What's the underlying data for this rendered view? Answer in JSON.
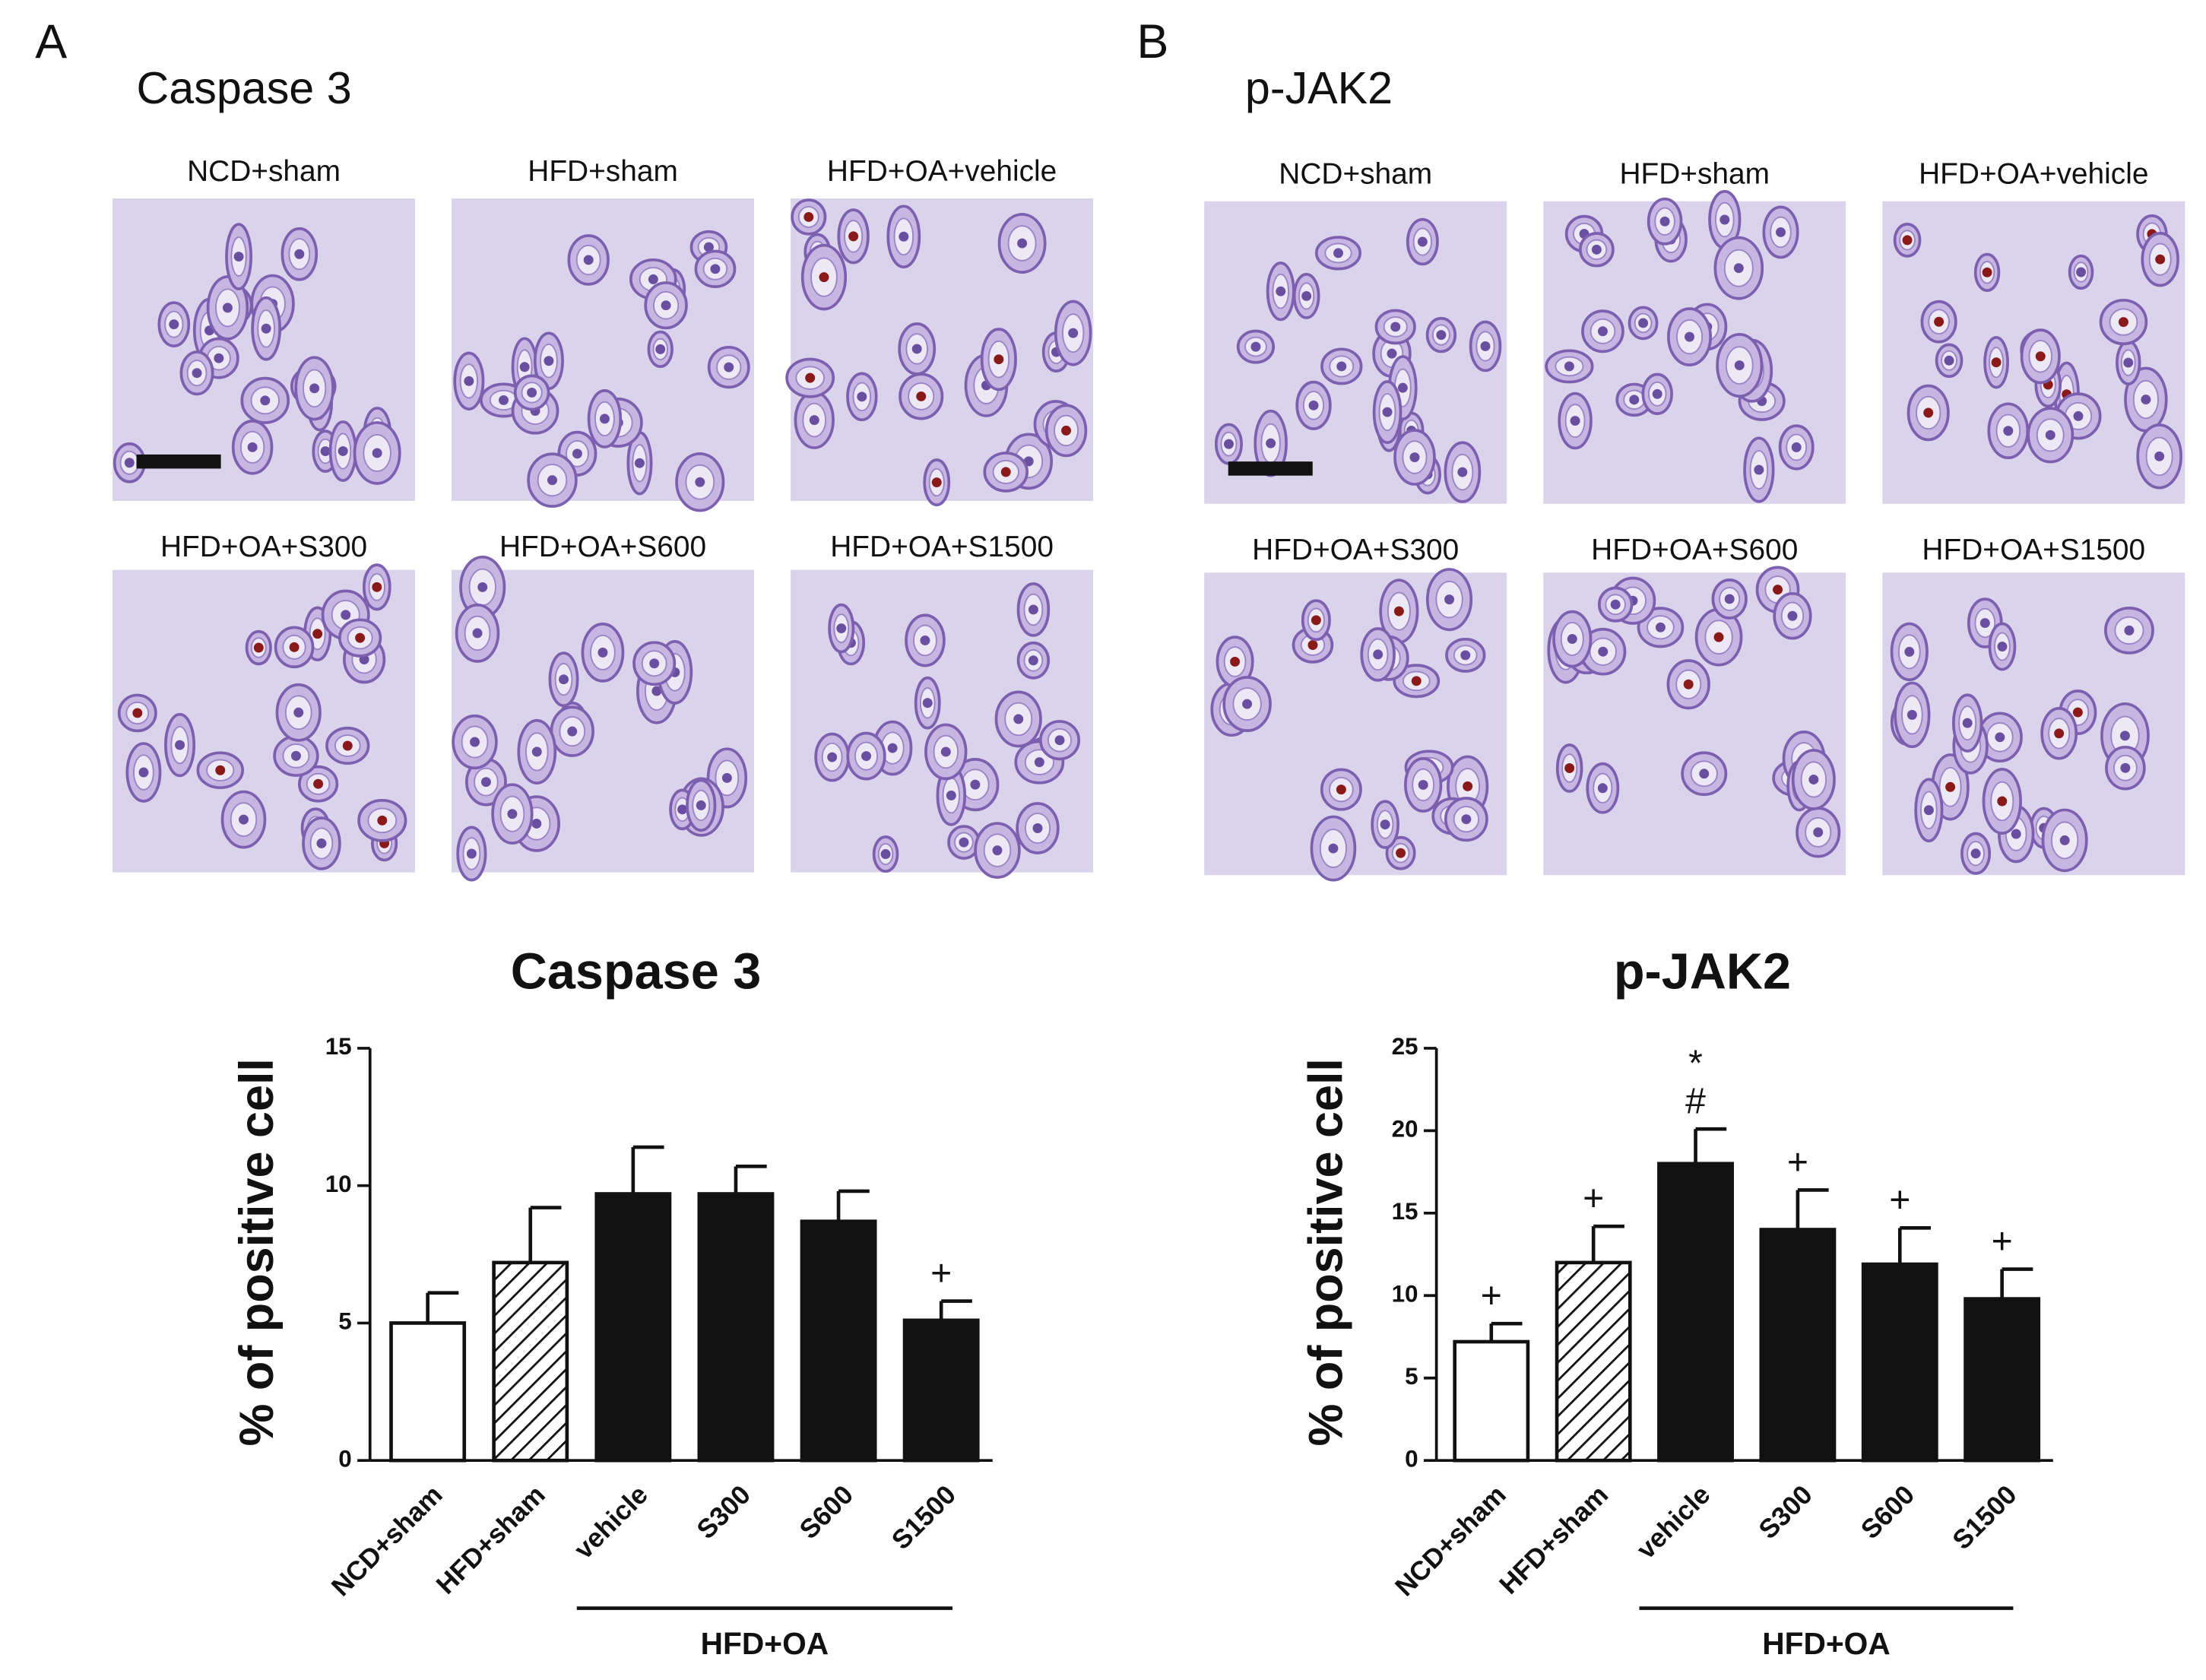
{
  "panels": [
    {
      "label": "A",
      "title": "Caspase 3",
      "images": [
        "NCD+sham",
        "HFD+sham",
        "HFD+OA+vehicle",
        "HFD+OA+S300",
        "HFD+OA+S600",
        "HFD+OA+S1500"
      ]
    },
    {
      "label": "B",
      "title": "p-JAK2",
      "images": [
        "NCD+sham",
        "HFD+sham",
        "HFD+OA+vehicle",
        "HFD+OA+S300",
        "HFD+OA+S600",
        "HFD+OA+S1500"
      ]
    }
  ],
  "chart_data": [
    {
      "type": "bar",
      "title": "Caspase 3",
      "y_label": "% of positive cell",
      "categories": [
        "NCD+sham",
        "HFD+sham",
        "vehicle",
        "S300",
        "S600",
        "S1500"
      ],
      "values": [
        5.0,
        7.2,
        9.7,
        9.7,
        8.7,
        5.1
      ],
      "errors": [
        1.1,
        2.0,
        1.7,
        1.0,
        1.1,
        0.7
      ],
      "styles": [
        "open",
        "hatched",
        "solid",
        "solid",
        "solid",
        "solid"
      ],
      "annotations": [
        [],
        [],
        [],
        [],
        [],
        [
          "+"
        ]
      ],
      "group": {
        "label": "HFD+OA",
        "span": [
          2,
          5
        ]
      },
      "ylim": [
        0,
        15
      ],
      "yticks": [
        0,
        5,
        10,
        15
      ]
    },
    {
      "type": "bar",
      "title": "p-JAK2",
      "y_label": "% of positive cell",
      "categories": [
        "NCD+sham",
        "HFD+sham",
        "vehicle",
        "S300",
        "S600",
        "S1500"
      ],
      "values": [
        7.2,
        12.0,
        18.0,
        14.0,
        11.9,
        9.8
      ],
      "errors": [
        1.1,
        2.2,
        2.1,
        2.4,
        2.2,
        1.8
      ],
      "styles": [
        "open",
        "hatched",
        "solid",
        "solid",
        "solid",
        "solid"
      ],
      "annotations": [
        [
          "+"
        ],
        [
          "+"
        ],
        [
          "*",
          "#"
        ],
        [
          "+"
        ],
        [
          "+"
        ],
        [
          "+"
        ]
      ],
      "group": {
        "label": "HFD+OA",
        "span": [
          2,
          5
        ]
      },
      "ylim": [
        0,
        25
      ],
      "yticks": [
        0,
        5,
        10,
        15,
        20,
        25
      ]
    }
  ]
}
